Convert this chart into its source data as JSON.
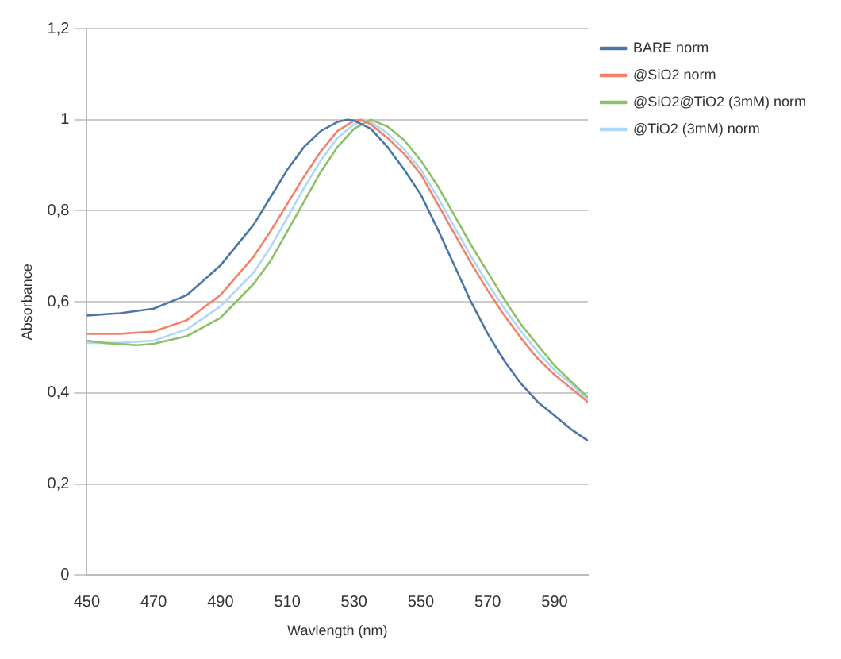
{
  "chart_data": {
    "type": "line",
    "xlabel": "Wavlength (nm)",
    "ylabel": "Absorbance",
    "xlim": [
      450,
      600
    ],
    "xticks": [
      450,
      470,
      490,
      510,
      530,
      550,
      570,
      590
    ],
    "ylim": [
      0,
      1.2
    ],
    "yticks": [
      0,
      {
        "value": 0.2,
        "label": "0,2"
      },
      {
        "value": 0.4,
        "label": "0,4"
      },
      {
        "value": 0.6,
        "label": "0,6"
      },
      {
        "value": 0.8,
        "label": "0,8"
      },
      1,
      {
        "value": 1.2,
        "label": "1,2"
      }
    ],
    "grid": "y",
    "legend": "top right",
    "marker": "none",
    "line_style": "solid",
    "series": [
      {
        "name": "BARE norm",
        "color": "#4a77a8",
        "x": [
          450,
          460,
          470,
          480,
          490,
          500,
          505,
          510,
          515,
          520,
          525,
          528,
          530,
          535,
          540,
          545,
          550,
          555,
          560,
          565,
          570,
          575,
          580,
          585,
          590,
          595,
          600
        ],
        "values": [
          0.57,
          0.575,
          0.585,
          0.615,
          0.68,
          0.77,
          0.83,
          0.89,
          0.94,
          0.975,
          0.995,
          1.0,
          0.998,
          0.98,
          0.94,
          0.89,
          0.835,
          0.76,
          0.68,
          0.6,
          0.53,
          0.47,
          0.42,
          0.38,
          0.35,
          0.32,
          0.295
        ]
      },
      {
        "name": "@SiO2 norm",
        "color": "#f4826a",
        "x": [
          450,
          460,
          470,
          480,
          490,
          500,
          505,
          510,
          515,
          520,
          525,
          530,
          532,
          535,
          540,
          545,
          550,
          555,
          560,
          565,
          570,
          575,
          580,
          585,
          590,
          595,
          600
        ],
        "values": [
          0.53,
          0.53,
          0.535,
          0.56,
          0.615,
          0.7,
          0.755,
          0.815,
          0.875,
          0.93,
          0.975,
          0.998,
          1.0,
          0.99,
          0.96,
          0.925,
          0.88,
          0.815,
          0.75,
          0.685,
          0.625,
          0.57,
          0.52,
          0.475,
          0.44,
          0.41,
          0.38
        ]
      },
      {
        "name": "@SiO2@TiO2 (3mM) norm",
        "color": "#8cc069",
        "x": [
          450,
          455,
          465,
          470,
          480,
          490,
          500,
          505,
          510,
          515,
          520,
          525,
          530,
          535,
          540,
          545,
          550,
          555,
          560,
          565,
          570,
          575,
          580,
          585,
          590,
          595,
          600
        ],
        "values": [
          0.515,
          0.51,
          0.505,
          0.508,
          0.525,
          0.565,
          0.64,
          0.69,
          0.755,
          0.82,
          0.885,
          0.94,
          0.98,
          1.0,
          0.985,
          0.955,
          0.91,
          0.855,
          0.79,
          0.725,
          0.665,
          0.605,
          0.55,
          0.505,
          0.46,
          0.425,
          0.39
        ]
      },
      {
        "name": "@TiO2 (3mM) norm",
        "color": "#aed8f5",
        "x": [
          450,
          460,
          470,
          480,
          490,
          500,
          505,
          510,
          515,
          520,
          525,
          530,
          533,
          535,
          540,
          545,
          550,
          555,
          560,
          565,
          570,
          575,
          580,
          585,
          590,
          595,
          600
        ],
        "values": [
          0.51,
          0.51,
          0.515,
          0.54,
          0.59,
          0.665,
          0.72,
          0.785,
          0.85,
          0.91,
          0.96,
          0.99,
          1.0,
          0.995,
          0.97,
          0.935,
          0.89,
          0.83,
          0.765,
          0.7,
          0.64,
          0.585,
          0.535,
          0.49,
          0.45,
          0.42,
          0.385
        ]
      }
    ]
  }
}
